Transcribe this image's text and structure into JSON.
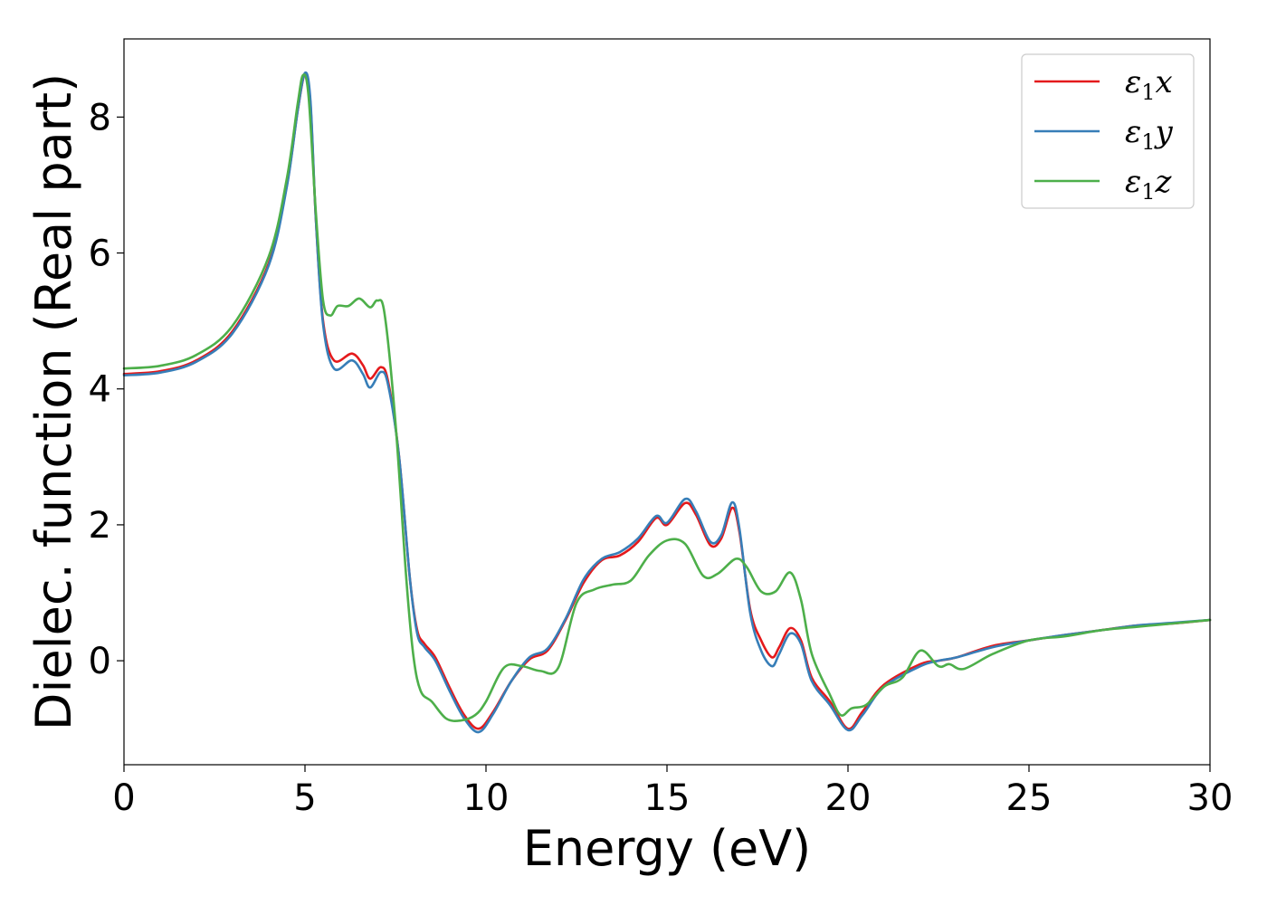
{
  "chart_data": {
    "type": "line",
    "title": "",
    "xlabel": "Energy (eV)",
    "ylabel": "Dielec. function (Real part)",
    "xlim": [
      0,
      30
    ],
    "ylim": [
      -1.53,
      9.15
    ],
    "xticks": [
      0,
      5,
      10,
      15,
      20,
      25,
      30
    ],
    "yticks": [
      0,
      2,
      4,
      6,
      8
    ],
    "grid": false,
    "legend_position": "top-right",
    "series": [
      {
        "name": "ε1x",
        "legend_main": "ε",
        "legend_sub": "1",
        "legend_tail": "x",
        "color": "#e41a1c",
        "points": [
          [
            0,
            4.22
          ],
          [
            1,
            4.26
          ],
          [
            2,
            4.42
          ],
          [
            3,
            4.85
          ],
          [
            4,
            5.85
          ],
          [
            4.5,
            7.0
          ],
          [
            4.8,
            8.1
          ],
          [
            5.0,
            8.63
          ],
          [
            5.15,
            8.2
          ],
          [
            5.3,
            6.5
          ],
          [
            5.5,
            5.0
          ],
          [
            5.8,
            4.42
          ],
          [
            6.3,
            4.52
          ],
          [
            6.6,
            4.35
          ],
          [
            6.8,
            4.15
          ],
          [
            7.1,
            4.32
          ],
          [
            7.3,
            4.1
          ],
          [
            7.6,
            3.0
          ],
          [
            7.9,
            1.2
          ],
          [
            8.1,
            0.45
          ],
          [
            8.3,
            0.25
          ],
          [
            8.6,
            0.05
          ],
          [
            9.0,
            -0.4
          ],
          [
            9.4,
            -0.8
          ],
          [
            9.8,
            -1.0
          ],
          [
            10.2,
            -0.75
          ],
          [
            10.7,
            -0.3
          ],
          [
            11.2,
            0.02
          ],
          [
            11.7,
            0.15
          ],
          [
            12.2,
            0.6
          ],
          [
            12.7,
            1.15
          ],
          [
            13.2,
            1.48
          ],
          [
            13.7,
            1.55
          ],
          [
            14.2,
            1.75
          ],
          [
            14.7,
            2.1
          ],
          [
            15.0,
            2.0
          ],
          [
            15.5,
            2.32
          ],
          [
            15.8,
            2.15
          ],
          [
            16.2,
            1.7
          ],
          [
            16.5,
            1.8
          ],
          [
            16.8,
            2.25
          ],
          [
            17.0,
            1.9
          ],
          [
            17.3,
            0.75
          ],
          [
            17.6,
            0.3
          ],
          [
            17.9,
            0.05
          ],
          [
            18.1,
            0.2
          ],
          [
            18.4,
            0.48
          ],
          [
            18.7,
            0.3
          ],
          [
            19.0,
            -0.25
          ],
          [
            19.5,
            -0.6
          ],
          [
            20.0,
            -1.0
          ],
          [
            20.4,
            -0.75
          ],
          [
            21.0,
            -0.35
          ],
          [
            22.0,
            -0.05
          ],
          [
            22.5,
            0.0
          ],
          [
            23.0,
            0.05
          ],
          [
            24.0,
            0.22
          ],
          [
            25.0,
            0.3
          ],
          [
            26.0,
            0.38
          ],
          [
            27.0,
            0.45
          ],
          [
            28.0,
            0.52
          ],
          [
            29.0,
            0.55
          ],
          [
            30.0,
            0.6
          ]
        ]
      },
      {
        "name": "ε1y",
        "legend_main": "ε",
        "legend_sub": "1",
        "legend_tail": "y",
        "color": "#377eb8",
        "points": [
          [
            0,
            4.2
          ],
          [
            1,
            4.24
          ],
          [
            2,
            4.4
          ],
          [
            3,
            4.82
          ],
          [
            4,
            5.82
          ],
          [
            4.5,
            6.98
          ],
          [
            4.8,
            8.1
          ],
          [
            5.0,
            8.65
          ],
          [
            5.15,
            8.25
          ],
          [
            5.3,
            6.5
          ],
          [
            5.5,
            4.95
          ],
          [
            5.8,
            4.3
          ],
          [
            6.3,
            4.42
          ],
          [
            6.6,
            4.22
          ],
          [
            6.8,
            4.02
          ],
          [
            7.1,
            4.25
          ],
          [
            7.3,
            4.05
          ],
          [
            7.6,
            3.0
          ],
          [
            7.9,
            1.2
          ],
          [
            8.1,
            0.4
          ],
          [
            8.3,
            0.2
          ],
          [
            8.6,
            0.0
          ],
          [
            9.0,
            -0.45
          ],
          [
            9.4,
            -0.85
          ],
          [
            9.8,
            -1.05
          ],
          [
            10.2,
            -0.78
          ],
          [
            10.7,
            -0.3
          ],
          [
            11.2,
            0.05
          ],
          [
            11.7,
            0.18
          ],
          [
            12.2,
            0.62
          ],
          [
            12.7,
            1.2
          ],
          [
            13.2,
            1.5
          ],
          [
            13.7,
            1.6
          ],
          [
            14.2,
            1.8
          ],
          [
            14.7,
            2.13
          ],
          [
            15.0,
            2.03
          ],
          [
            15.5,
            2.38
          ],
          [
            15.8,
            2.2
          ],
          [
            16.2,
            1.75
          ],
          [
            16.5,
            1.85
          ],
          [
            16.8,
            2.33
          ],
          [
            17.0,
            1.95
          ],
          [
            17.3,
            0.7
          ],
          [
            17.6,
            0.15
          ],
          [
            17.9,
            -0.08
          ],
          [
            18.1,
            0.1
          ],
          [
            18.4,
            0.4
          ],
          [
            18.7,
            0.25
          ],
          [
            19.0,
            -0.3
          ],
          [
            19.5,
            -0.65
          ],
          [
            20.0,
            -1.02
          ],
          [
            20.4,
            -0.8
          ],
          [
            21.0,
            -0.38
          ],
          [
            22.0,
            -0.08
          ],
          [
            22.5,
            0.0
          ],
          [
            23.0,
            0.05
          ],
          [
            24.0,
            0.2
          ],
          [
            25.0,
            0.3
          ],
          [
            26.0,
            0.38
          ],
          [
            27.0,
            0.45
          ],
          [
            28.0,
            0.52
          ],
          [
            29.0,
            0.56
          ],
          [
            30.0,
            0.6
          ]
        ]
      },
      {
        "name": "ε1z",
        "legend_main": "ε",
        "legend_sub": "1",
        "legend_tail": "z",
        "color": "#4daf4a",
        "points": [
          [
            0,
            4.3
          ],
          [
            1,
            4.34
          ],
          [
            2,
            4.5
          ],
          [
            3,
            4.93
          ],
          [
            4,
            5.95
          ],
          [
            4.5,
            7.1
          ],
          [
            4.8,
            8.2
          ],
          [
            4.95,
            8.62
          ],
          [
            5.1,
            8.3
          ],
          [
            5.3,
            6.6
          ],
          [
            5.5,
            5.3
          ],
          [
            5.7,
            5.08
          ],
          [
            5.9,
            5.22
          ],
          [
            6.2,
            5.22
          ],
          [
            6.5,
            5.33
          ],
          [
            6.8,
            5.2
          ],
          [
            7.0,
            5.3
          ],
          [
            7.2,
            5.1
          ],
          [
            7.5,
            3.5
          ],
          [
            7.8,
            1.2
          ],
          [
            8.0,
            0.05
          ],
          [
            8.2,
            -0.45
          ],
          [
            8.5,
            -0.6
          ],
          [
            8.9,
            -0.85
          ],
          [
            9.3,
            -0.88
          ],
          [
            9.7,
            -0.8
          ],
          [
            10.0,
            -0.6
          ],
          [
            10.5,
            -0.1
          ],
          [
            11.0,
            -0.08
          ],
          [
            11.5,
            -0.15
          ],
          [
            12.0,
            -0.1
          ],
          [
            12.5,
            0.85
          ],
          [
            13.0,
            1.05
          ],
          [
            13.5,
            1.12
          ],
          [
            14.0,
            1.18
          ],
          [
            14.5,
            1.55
          ],
          [
            15.0,
            1.77
          ],
          [
            15.5,
            1.72
          ],
          [
            16.0,
            1.25
          ],
          [
            16.4,
            1.28
          ],
          [
            16.9,
            1.5
          ],
          [
            17.2,
            1.38
          ],
          [
            17.6,
            1.02
          ],
          [
            18.0,
            1.02
          ],
          [
            18.4,
            1.3
          ],
          [
            18.7,
            0.9
          ],
          [
            19.0,
            0.1
          ],
          [
            19.5,
            -0.5
          ],
          [
            19.8,
            -0.8
          ],
          [
            20.1,
            -0.7
          ],
          [
            20.5,
            -0.65
          ],
          [
            21.0,
            -0.38
          ],
          [
            21.5,
            -0.25
          ],
          [
            22.0,
            0.15
          ],
          [
            22.5,
            -0.08
          ],
          [
            22.8,
            -0.05
          ],
          [
            23.2,
            -0.12
          ],
          [
            24.0,
            0.1
          ],
          [
            25.0,
            0.3
          ],
          [
            26.0,
            0.36
          ],
          [
            27.0,
            0.45
          ],
          [
            28.0,
            0.5
          ],
          [
            29.0,
            0.55
          ],
          [
            30.0,
            0.6
          ]
        ]
      }
    ]
  }
}
